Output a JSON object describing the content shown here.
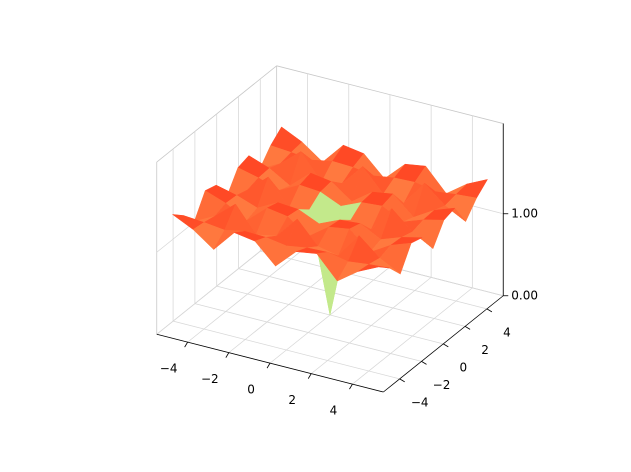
{
  "chart_data": {
    "type": "surface",
    "colormap": "rainbow",
    "x": [
      -5,
      -4,
      -3,
      -2,
      -1,
      0,
      1,
      2,
      3,
      4,
      5
    ],
    "y": [
      -5,
      -4,
      -3,
      -2,
      -1,
      0,
      1,
      2,
      3,
      4,
      5
    ],
    "z": [
      [
        1.44,
        1.32,
        1.14,
        1.41,
        1.37,
        1.13,
        1.37,
        1.41,
        1.14,
        1.32,
        1.44
      ],
      [
        1.32,
        1.3,
        1.27,
        1.32,
        1.31,
        1.27,
        1.31,
        1.32,
        1.27,
        1.3,
        1.32
      ],
      [
        1.14,
        1.27,
        1.48,
        1.17,
        1.22,
        1.49,
        1.22,
        1.17,
        1.48,
        1.27,
        1.14
      ],
      [
        1.41,
        1.32,
        1.17,
        1.39,
        1.35,
        1.17,
        1.35,
        1.39,
        1.17,
        1.32,
        1.41
      ],
      [
        1.37,
        1.31,
        1.22,
        1.35,
        1.33,
        1.22,
        1.33,
        1.35,
        1.22,
        1.31,
        1.37
      ],
      [
        1.13,
        1.27,
        1.49,
        1.17,
        1.22,
        0,
        1.22,
        1.17,
        1.49,
        1.27,
        1.13
      ],
      [
        1.37,
        1.31,
        1.22,
        1.35,
        1.33,
        1.22,
        1.33,
        1.35,
        1.22,
        1.31,
        1.37
      ],
      [
        1.41,
        1.32,
        1.17,
        1.39,
        1.35,
        1.17,
        1.35,
        1.39,
        1.17,
        1.32,
        1.41
      ],
      [
        1.14,
        1.27,
        1.48,
        1.17,
        1.22,
        1.49,
        1.22,
        1.17,
        1.48,
        1.27,
        1.14
      ],
      [
        1.32,
        1.3,
        1.27,
        1.32,
        1.31,
        1.27,
        1.31,
        1.32,
        1.27,
        1.3,
        1.32
      ],
      [
        1.44,
        1.32,
        1.14,
        1.41,
        1.37,
        1.13,
        1.37,
        1.41,
        1.14,
        1.32,
        1.44
      ]
    ],
    "xlim": [
      -5.5,
      5.5
    ],
    "ylim": [
      -5.5,
      5.5
    ],
    "zlim": [
      0,
      2.1
    ],
    "xticks": [
      {
        "value": -4,
        "label": "−4"
      },
      {
        "value": -2,
        "label": "−2"
      },
      0,
      2,
      4
    ],
    "yticks": [
      {
        "value": -4,
        "label": "−4"
      },
      {
        "value": -2,
        "label": "−2"
      },
      0,
      2,
      4
    ],
    "zticks": [
      {
        "value": 0,
        "label": "0.00"
      },
      {
        "value": 1,
        "label": "1.00"
      }
    ],
    "grid": true
  }
}
